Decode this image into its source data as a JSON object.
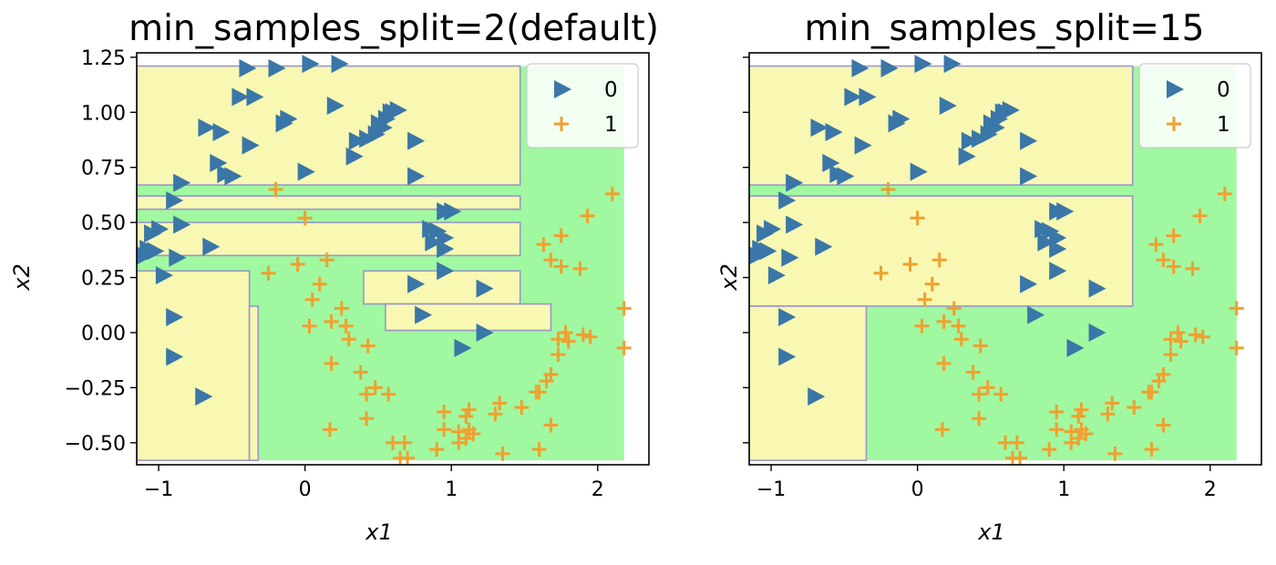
{
  "chart_data": [
    {
      "type": "scatter",
      "title": "min_samples_split=2(default)",
      "xlabel": "x1",
      "ylabel": "x2",
      "xlim": [
        -1.15,
        2.35
      ],
      "ylim": [
        -0.6,
        1.27
      ],
      "xticks": [
        -1,
        0,
        1,
        2
      ],
      "xtick_labels": [
        "−1",
        "0",
        "1",
        "2"
      ],
      "yticks": [
        -0.5,
        -0.25,
        0.0,
        0.25,
        0.5,
        0.75,
        1.0,
        1.25
      ],
      "ytick_labels": [
        "−0.50",
        "−0.25",
        "0.00",
        "0.25",
        "0.50",
        "0.75",
        "1.00",
        "1.25"
      ],
      "legend": {
        "placement": "top-right",
        "entries": [
          "0",
          "1"
        ]
      },
      "colors": {
        "class0_marker": "#3a76a8",
        "class1_marker": "#f0a030",
        "region0": "#f8f8b2",
        "region1": "#a0f8a0",
        "boundary": "#9b95c9"
      },
      "regions": {
        "xrange": [
          -1.15,
          2.18
        ],
        "yrange": [
          -0.58,
          1.21
        ],
        "class0_rects": [
          [
            -1.15,
            0.67,
            1.47,
            1.21
          ],
          [
            -1.15,
            0.56,
            1.47,
            0.62
          ],
          [
            -1.15,
            0.35,
            1.47,
            0.5
          ],
          [
            -1.15,
            -0.58,
            -0.38,
            0.28
          ],
          [
            -0.38,
            -0.58,
            -0.32,
            0.12
          ],
          [
            0.4,
            0.13,
            1.47,
            0.28
          ],
          [
            0.55,
            0.01,
            1.68,
            0.13
          ]
        ]
      },
      "series": [
        {
          "name": "0",
          "marker": "triangle-right",
          "points": [
            [
              -0.4,
              1.2
            ],
            [
              -0.2,
              1.2
            ],
            [
              0.03,
              1.22
            ],
            [
              0.23,
              1.22
            ],
            [
              -0.45,
              1.07
            ],
            [
              -0.35,
              1.07
            ],
            [
              -0.68,
              0.93
            ],
            [
              -0.58,
              0.91
            ],
            [
              -0.38,
              0.85
            ],
            [
              -0.12,
              0.97
            ],
            [
              -0.15,
              0.95
            ],
            [
              0.2,
              1.03
            ],
            [
              0.35,
              0.87
            ],
            [
              0.42,
              0.88
            ],
            [
              0.48,
              0.9
            ],
            [
              0.53,
              0.93
            ],
            [
              0.55,
              0.97
            ],
            [
              0.58,
              1.0
            ],
            [
              0.6,
              1.0
            ],
            [
              0.63,
              1.01
            ],
            [
              0.5,
              0.95
            ],
            [
              0.75,
              0.87
            ],
            [
              0.33,
              0.8
            ],
            [
              -0.6,
              0.77
            ],
            [
              -0.55,
              0.72
            ],
            [
              -0.5,
              0.71
            ],
            [
              0.0,
              0.73
            ],
            [
              0.75,
              0.71
            ],
            [
              -0.85,
              0.68
            ],
            [
              -0.9,
              0.6
            ],
            [
              -0.85,
              0.49
            ],
            [
              -1.0,
              0.47
            ],
            [
              -1.05,
              0.45
            ],
            [
              -1.08,
              0.38
            ],
            [
              -1.03,
              0.37
            ],
            [
              -1.1,
              0.35
            ],
            [
              -0.65,
              0.39
            ],
            [
              -0.88,
              0.34
            ],
            [
              -0.97,
              0.26
            ],
            [
              0.95,
              0.55
            ],
            [
              1.0,
              0.55
            ],
            [
              0.85,
              0.47
            ],
            [
              0.9,
              0.46
            ],
            [
              0.95,
              0.43
            ],
            [
              0.87,
              0.41
            ],
            [
              0.95,
              0.38
            ],
            [
              0.95,
              0.28
            ],
            [
              0.75,
              0.22
            ],
            [
              1.22,
              0.2
            ],
            [
              0.8,
              0.08
            ],
            [
              1.22,
              0.0
            ],
            [
              1.07,
              -0.07
            ],
            [
              -0.9,
              0.07
            ],
            [
              -0.9,
              -0.11
            ],
            [
              -0.7,
              -0.29
            ]
          ]
        },
        {
          "name": "1",
          "marker": "plus",
          "points": [
            [
              -0.2,
              0.65
            ],
            [
              -0.25,
              0.27
            ],
            [
              0.0,
              0.52
            ],
            [
              -0.05,
              0.31
            ],
            [
              0.15,
              0.33
            ],
            [
              0.1,
              0.22
            ],
            [
              0.05,
              0.15
            ],
            [
              0.25,
              0.11
            ],
            [
              0.18,
              0.05
            ],
            [
              0.03,
              0.03
            ],
            [
              0.28,
              0.03
            ],
            [
              0.3,
              -0.03
            ],
            [
              0.43,
              -0.06
            ],
            [
              0.18,
              -0.14
            ],
            [
              0.38,
              -0.18
            ],
            [
              0.48,
              -0.25
            ],
            [
              0.42,
              -0.28
            ],
            [
              0.57,
              -0.28
            ],
            [
              0.42,
              -0.39
            ],
            [
              0.17,
              -0.44
            ],
            [
              0.6,
              -0.5
            ],
            [
              0.68,
              -0.5
            ],
            [
              0.65,
              -0.57
            ],
            [
              0.7,
              -0.57
            ],
            [
              0.95,
              -0.36
            ],
            [
              0.95,
              -0.44
            ],
            [
              0.9,
              -0.53
            ],
            [
              1.05,
              -0.45
            ],
            [
              1.05,
              -0.5
            ],
            [
              1.1,
              -0.48
            ],
            [
              1.15,
              -0.46
            ],
            [
              1.12,
              -0.44
            ],
            [
              1.1,
              -0.38
            ],
            [
              1.12,
              -0.35
            ],
            [
              1.3,
              -0.37
            ],
            [
              1.33,
              -0.32
            ],
            [
              1.35,
              -0.55
            ],
            [
              1.48,
              -0.34
            ],
            [
              1.58,
              -0.27
            ],
            [
              1.6,
              -0.27
            ],
            [
              1.65,
              -0.22
            ],
            [
              1.68,
              -0.19
            ],
            [
              1.6,
              -0.53
            ],
            [
              1.68,
              -0.42
            ],
            [
              1.73,
              -0.1
            ],
            [
              1.73,
              -0.03
            ],
            [
              1.78,
              0.0
            ],
            [
              1.8,
              -0.04
            ],
            [
              1.9,
              -0.01
            ],
            [
              1.95,
              -0.02
            ],
            [
              2.18,
              0.11
            ],
            [
              2.18,
              -0.07
            ],
            [
              1.75,
              0.44
            ],
            [
              1.88,
              0.29
            ],
            [
              1.93,
              0.53
            ],
            [
              2.1,
              0.63
            ],
            [
              1.68,
              0.33
            ],
            [
              1.63,
              0.4
            ],
            [
              1.75,
              0.3
            ]
          ]
        }
      ]
    },
    {
      "type": "scatter",
      "title": "min_samples_split=15",
      "xlabel": "x1",
      "ylabel": "x2",
      "xlim": [
        -1.15,
        2.35
      ],
      "ylim": [
        -0.6,
        1.27
      ],
      "xticks": [
        -1,
        0,
        1,
        2
      ],
      "xtick_labels": [
        "−1",
        "0",
        "1",
        "2"
      ],
      "yticks": [
        -0.5,
        -0.25,
        0.0,
        0.25,
        0.5,
        0.75,
        1.0,
        1.25
      ],
      "ytick_labels": [
        "",
        "",
        "",
        "",
        "",
        "",
        "",
        ""
      ],
      "legend": {
        "placement": "top-right",
        "entries": [
          "0",
          "1"
        ]
      },
      "colors": {
        "class0_marker": "#3a76a8",
        "class1_marker": "#f0a030",
        "region0": "#f8f8b2",
        "region1": "#a0f8a0",
        "boundary": "#9b95c9"
      },
      "regions": {
        "xrange": [
          -1.15,
          2.18
        ],
        "yrange": [
          -0.58,
          1.21
        ],
        "class0_rects": [
          [
            -1.15,
            0.67,
            1.47,
            1.21
          ],
          [
            -1.15,
            0.12,
            1.47,
            0.62
          ],
          [
            -1.15,
            -0.58,
            -0.35,
            0.12
          ]
        ]
      },
      "series": [
        {
          "name": "0",
          "marker": "triangle-right",
          "points": [
            [
              -0.4,
              1.2
            ],
            [
              -0.2,
              1.2
            ],
            [
              0.03,
              1.22
            ],
            [
              0.23,
              1.22
            ],
            [
              -0.45,
              1.07
            ],
            [
              -0.35,
              1.07
            ],
            [
              -0.68,
              0.93
            ],
            [
              -0.58,
              0.91
            ],
            [
              -0.38,
              0.85
            ],
            [
              -0.12,
              0.97
            ],
            [
              -0.15,
              0.95
            ],
            [
              0.2,
              1.03
            ],
            [
              0.35,
              0.87
            ],
            [
              0.42,
              0.88
            ],
            [
              0.48,
              0.9
            ],
            [
              0.53,
              0.93
            ],
            [
              0.55,
              0.97
            ],
            [
              0.58,
              1.0
            ],
            [
              0.6,
              1.0
            ],
            [
              0.63,
              1.01
            ],
            [
              0.5,
              0.95
            ],
            [
              0.75,
              0.87
            ],
            [
              0.33,
              0.8
            ],
            [
              -0.6,
              0.77
            ],
            [
              -0.55,
              0.72
            ],
            [
              -0.5,
              0.71
            ],
            [
              0.0,
              0.73
            ],
            [
              0.75,
              0.71
            ],
            [
              -0.85,
              0.68
            ],
            [
              -0.9,
              0.6
            ],
            [
              -0.85,
              0.49
            ],
            [
              -1.0,
              0.47
            ],
            [
              -1.05,
              0.45
            ],
            [
              -1.08,
              0.38
            ],
            [
              -1.03,
              0.37
            ],
            [
              -1.1,
              0.35
            ],
            [
              -0.65,
              0.39
            ],
            [
              -0.88,
              0.34
            ],
            [
              -0.97,
              0.26
            ],
            [
              0.95,
              0.55
            ],
            [
              1.0,
              0.55
            ],
            [
              0.85,
              0.47
            ],
            [
              0.9,
              0.46
            ],
            [
              0.95,
              0.43
            ],
            [
              0.87,
              0.41
            ],
            [
              0.95,
              0.38
            ],
            [
              0.95,
              0.28
            ],
            [
              0.75,
              0.22
            ],
            [
              1.22,
              0.2
            ],
            [
              0.8,
              0.08
            ],
            [
              1.22,
              0.0
            ],
            [
              1.07,
              -0.07
            ],
            [
              -0.9,
              0.07
            ],
            [
              -0.9,
              -0.11
            ],
            [
              -0.7,
              -0.29
            ]
          ]
        },
        {
          "name": "1",
          "marker": "plus",
          "points": [
            [
              -0.2,
              0.65
            ],
            [
              -0.25,
              0.27
            ],
            [
              0.0,
              0.52
            ],
            [
              -0.05,
              0.31
            ],
            [
              0.15,
              0.33
            ],
            [
              0.1,
              0.22
            ],
            [
              0.05,
              0.15
            ],
            [
              0.25,
              0.11
            ],
            [
              0.18,
              0.05
            ],
            [
              0.03,
              0.03
            ],
            [
              0.28,
              0.03
            ],
            [
              0.3,
              -0.03
            ],
            [
              0.43,
              -0.06
            ],
            [
              0.18,
              -0.14
            ],
            [
              0.38,
              -0.18
            ],
            [
              0.48,
              -0.25
            ],
            [
              0.42,
              -0.28
            ],
            [
              0.57,
              -0.28
            ],
            [
              0.42,
              -0.39
            ],
            [
              0.17,
              -0.44
            ],
            [
              0.6,
              -0.5
            ],
            [
              0.68,
              -0.5
            ],
            [
              0.65,
              -0.57
            ],
            [
              0.7,
              -0.57
            ],
            [
              0.95,
              -0.36
            ],
            [
              0.95,
              -0.44
            ],
            [
              0.9,
              -0.53
            ],
            [
              1.05,
              -0.45
            ],
            [
              1.05,
              -0.5
            ],
            [
              1.1,
              -0.48
            ],
            [
              1.15,
              -0.46
            ],
            [
              1.12,
              -0.44
            ],
            [
              1.1,
              -0.38
            ],
            [
              1.12,
              -0.35
            ],
            [
              1.3,
              -0.37
            ],
            [
              1.33,
              -0.32
            ],
            [
              1.35,
              -0.55
            ],
            [
              1.48,
              -0.34
            ],
            [
              1.58,
              -0.27
            ],
            [
              1.6,
              -0.27
            ],
            [
              1.65,
              -0.22
            ],
            [
              1.68,
              -0.19
            ],
            [
              1.6,
              -0.53
            ],
            [
              1.68,
              -0.42
            ],
            [
              1.73,
              -0.1
            ],
            [
              1.73,
              -0.03
            ],
            [
              1.78,
              0.0
            ],
            [
              1.8,
              -0.04
            ],
            [
              1.9,
              -0.01
            ],
            [
              1.95,
              -0.02
            ],
            [
              2.18,
              0.11
            ],
            [
              2.18,
              -0.07
            ],
            [
              1.75,
              0.44
            ],
            [
              1.88,
              0.29
            ],
            [
              1.93,
              0.53
            ],
            [
              2.1,
              0.63
            ],
            [
              1.68,
              0.33
            ],
            [
              1.63,
              0.4
            ],
            [
              1.75,
              0.3
            ]
          ]
        }
      ]
    }
  ]
}
